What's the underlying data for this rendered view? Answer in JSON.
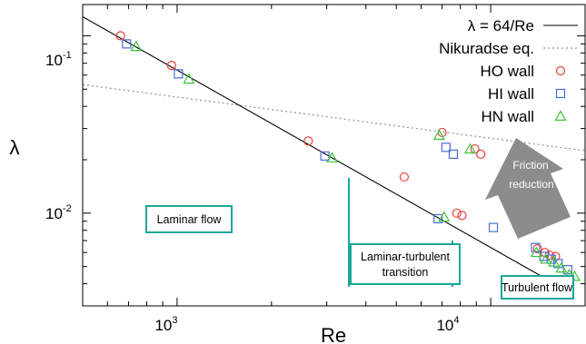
{
  "chart_data": {
    "type": "scatter",
    "title": "",
    "xlabel": "Re",
    "ylabel": "λ",
    "xscale": "log",
    "yscale": "log",
    "xlim": [
      500,
      20000
    ],
    "ylim": [
      0.003,
      0.15
    ],
    "grid": false,
    "legend_position": "top-right",
    "x_tick_labels": [
      {
        "base": "10",
        "exp": "3",
        "value": 1000
      },
      {
        "base": "10",
        "exp": "4",
        "value": 10000
      }
    ],
    "y_tick_labels": [
      {
        "base": "10",
        "exp": "-1",
        "value": 0.1
      },
      {
        "base": "10",
        "exp": "-2",
        "value": 0.01
      }
    ],
    "lines": [
      {
        "name": "λ = 64/Re",
        "style": "solid",
        "color": "#000000",
        "formula": "64/Re",
        "x": [
          500,
          17000
        ]
      },
      {
        "name": "Nikuradse eq.",
        "style": "dotted",
        "color": "#888888",
        "x": [
          500,
          20000
        ],
        "y": [
          0.053,
          0.0225
        ]
      }
    ],
    "series": [
      {
        "name": "HO wall",
        "marker": "circle",
        "color": "#e8403a",
        "x": [
          660,
          960,
          2620,
          5300,
          7000,
          7800,
          8100,
          8900,
          9300,
          14100,
          14900,
          15400,
          16100
        ],
        "y": [
          0.1,
          0.068,
          0.0255,
          0.016,
          0.0285,
          0.01,
          0.0097,
          0.023,
          0.0215,
          0.0063,
          0.006,
          0.0058,
          0.0057
        ]
      },
      {
        "name": "HI wall",
        "marker": "square",
        "color": "#4a6fd4",
        "x": [
          690,
          1010,
          2960,
          6800,
          7200,
          7600,
          10200,
          13900,
          14800,
          15600,
          16400,
          17600
        ],
        "y": [
          0.09,
          0.061,
          0.021,
          0.0093,
          0.0235,
          0.0215,
          0.0083,
          0.0064,
          0.0057,
          0.0055,
          0.0052,
          0.0048
        ]
      },
      {
        "name": "HN wall",
        "marker": "triangle",
        "color": "#3dc43a",
        "x": [
          740,
          1090,
          3120,
          6850,
          7100,
          8600,
          14000,
          15000,
          15900,
          16800,
          17800,
          18500
        ],
        "y": [
          0.087,
          0.057,
          0.0205,
          0.0275,
          0.0095,
          0.023,
          0.006,
          0.0055,
          0.0053,
          0.0049,
          0.0045,
          0.0044
        ]
      }
    ],
    "annotations": {
      "laminar": "Laminar flow",
      "transition_line1": "Laminar-turbulent",
      "transition_line2": "transition",
      "turbulent": "Turbulent flow",
      "arrow_line1": "Friction",
      "arrow_line2": "reduction"
    },
    "colors": {
      "annotation_border": "#1aa79a",
      "arrow_fill": "#8c8c8c"
    }
  }
}
